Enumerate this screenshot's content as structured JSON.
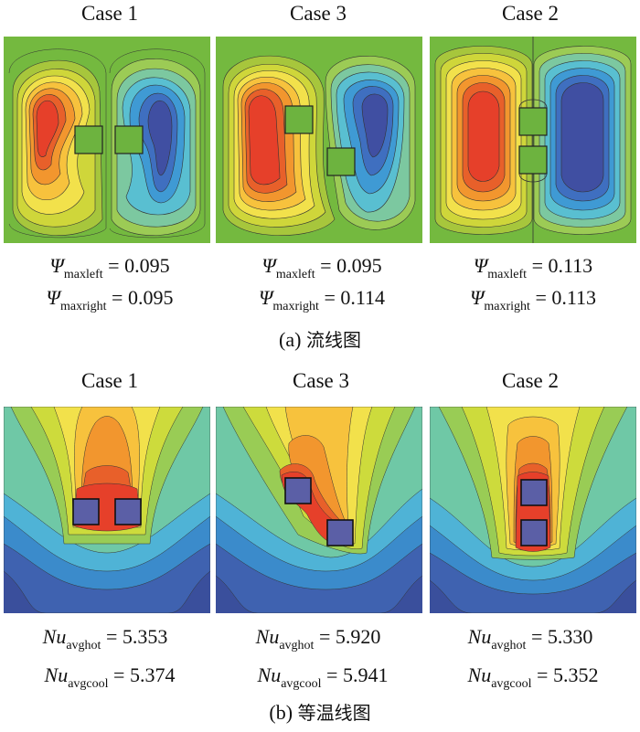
{
  "figure_a": {
    "caption_label": "(a)",
    "caption_text": "流线图",
    "panels": [
      {
        "title": "Case 1",
        "psi_left_sub": "maxleft",
        "psi_left_val": "= 0.095",
        "psi_right_sub": "maxright",
        "psi_right_val": "= 0.095"
      },
      {
        "title": "Case 3",
        "psi_left_sub": "maxleft",
        "psi_left_val": "= 0.095",
        "psi_right_sub": "maxright",
        "psi_right_val": "= 0.114"
      },
      {
        "title": "Case 2",
        "psi_left_sub": "maxleft",
        "psi_left_val": "= 0.113",
        "psi_right_sub": "maxright",
        "psi_right_val": "= 0.113"
      }
    ],
    "symbol": "Ψ"
  },
  "figure_b": {
    "caption_label": "(b)",
    "caption_text": "等温线图",
    "panels": [
      {
        "title": "Case 1",
        "hot_sub": "avghot",
        "hot_val": "= 5.353",
        "cool_sub": "avgcool",
        "cool_val": "= 5.374"
      },
      {
        "title": "Case 3",
        "hot_sub": "avghot",
        "hot_val": "= 5.920",
        "cool_sub": "avgcool",
        "cool_val": "= 5.941"
      },
      {
        "title": "Case 2",
        "hot_sub": "avghot",
        "hot_val": "= 5.330",
        "cool_sub": "avgcool",
        "cool_val": "= 5.352"
      }
    ],
    "symbol": "Nu"
  },
  "colors": {
    "background_green": "#6db33f",
    "hot_red": "#e8302a",
    "cold_blue": "#3c4fa0",
    "heater_block": "#5b5fa6"
  }
}
